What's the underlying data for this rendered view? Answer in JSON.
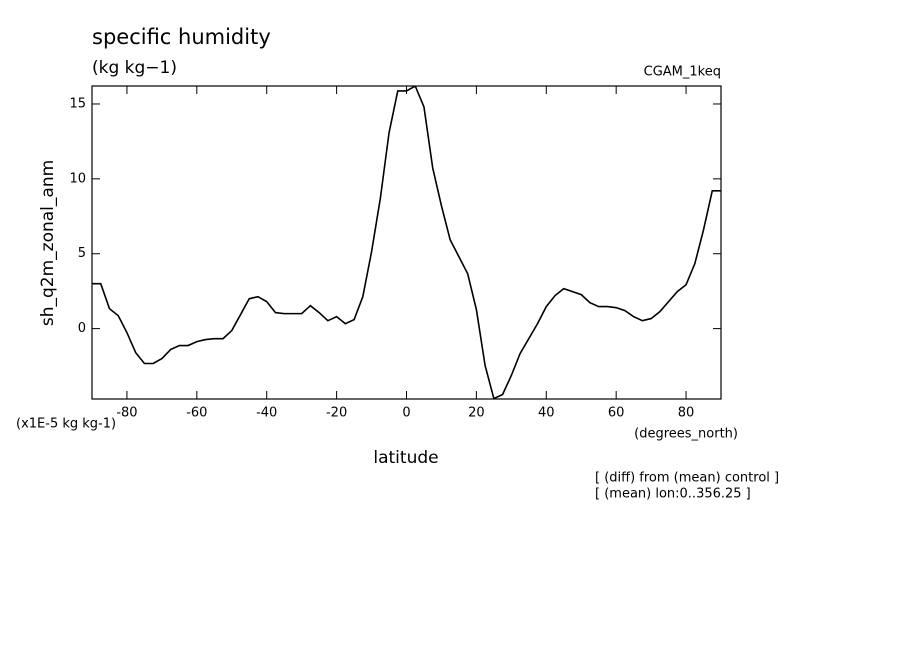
{
  "chart_data": {
    "type": "line",
    "title": "specific humidity",
    "subtitle": "(kg kg−1)",
    "experiment": "CGAM_1keq",
    "y_label": "sh_q2m_zonal_anm",
    "y_unit": "(x1E-5 kg kg-1)",
    "x_label": "latitude",
    "x_unit": "(degrees_north)",
    "notes": [
      "[ (diff) from (mean) control ]",
      "[ (mean) lon:0..356.25 ]"
    ],
    "xlim": [
      -90,
      90
    ],
    "xticks": [
      -80,
      -60,
      -40,
      -20,
      0,
      20,
      40,
      60,
      80
    ],
    "ylim": [
      -4.7,
      16.2
    ],
    "yticks": [
      0,
      5,
      10,
      15
    ],
    "x": [
      -90,
      -87.5,
      -85,
      -82.5,
      -80,
      -77.5,
      -75,
      -72.5,
      -70,
      -67.5,
      -65,
      -62.5,
      -60,
      -57.5,
      -55,
      -52.5,
      -50,
      -47.5,
      -45,
      -42.5,
      -40,
      -37.5,
      -35,
      -32.5,
      -30,
      -27.5,
      -25,
      -22.5,
      -20,
      -17.5,
      -15,
      -12.5,
      -10,
      -7.5,
      -5,
      -2.5,
      0,
      2.5,
      5,
      7.5,
      10,
      12.5,
      15,
      17.5,
      20,
      22.5,
      25,
      27.5,
      30,
      32.5,
      35,
      37.5,
      40,
      42.5,
      45,
      47.5,
      50,
      52.5,
      55,
      57.5,
      60,
      62.5,
      65,
      67.5,
      70,
      72.5,
      75,
      77.5,
      80,
      82.5,
      85,
      87.5,
      90
    ],
    "series": [
      {
        "name": "sh_q2m_zonal_anm",
        "color": "#000000",
        "values": [
          3.0,
          3.0,
          1.33,
          0.87,
          -0.27,
          -1.6,
          -2.33,
          -2.33,
          -2.0,
          -1.4,
          -1.13,
          -1.13,
          -0.87,
          -0.73,
          -0.67,
          -0.67,
          -0.13,
          0.93,
          2.0,
          2.13,
          1.8,
          1.07,
          1.0,
          1.0,
          1.0,
          1.53,
          1.07,
          0.53,
          0.8,
          0.33,
          0.6,
          2.13,
          5.13,
          8.67,
          13.07,
          15.87,
          15.87,
          16.2,
          14.8,
          10.73,
          8.2,
          5.93,
          4.8,
          3.67,
          1.27,
          -2.47,
          -4.67,
          -4.4,
          -3.13,
          -1.67,
          -0.67,
          0.33,
          1.47,
          2.2,
          2.67,
          2.47,
          2.27,
          1.73,
          1.47,
          1.47,
          1.4,
          1.2,
          0.8,
          0.53,
          0.67,
          1.13,
          1.8,
          2.47,
          2.93,
          4.33,
          6.6,
          9.2,
          9.2
        ]
      }
    ]
  }
}
